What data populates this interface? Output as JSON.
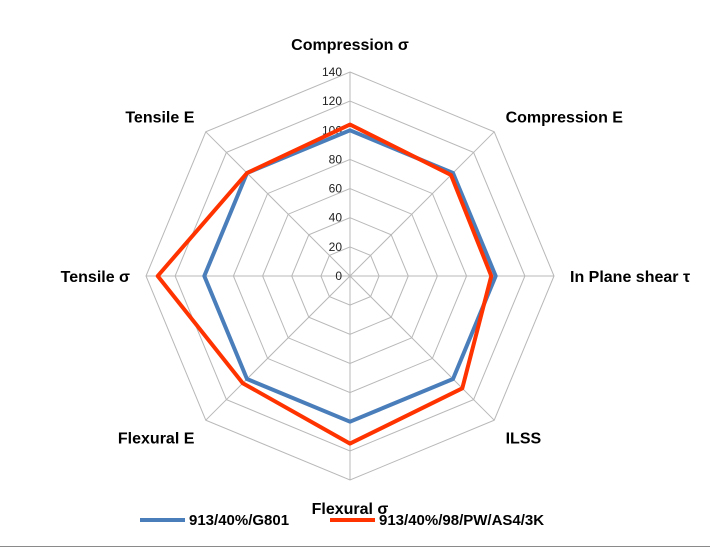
{
  "chart_data": {
    "type": "radar",
    "axes": [
      "Compression σ",
      "Compression E",
      "In Plane shear τ",
      "ILSS",
      "Flexural σ",
      "Flexural E",
      "Tensile σ",
      "Tensile E"
    ],
    "rlim": [
      0,
      140
    ],
    "ticks": [
      0,
      20,
      40,
      60,
      80,
      100,
      120,
      140
    ],
    "grid": true,
    "legend_position": "bottom",
    "series": [
      {
        "name": "913/40%/G801",
        "color": "#4a7ebb",
        "values": [
          100,
          100,
          100,
          100,
          100,
          100,
          100,
          100
        ]
      },
      {
        "name": "913/40%/98/PW/AS4/3K",
        "color": "#ff3300",
        "values": [
          104,
          98,
          97,
          109,
          115,
          104,
          132,
          100
        ]
      }
    ]
  }
}
